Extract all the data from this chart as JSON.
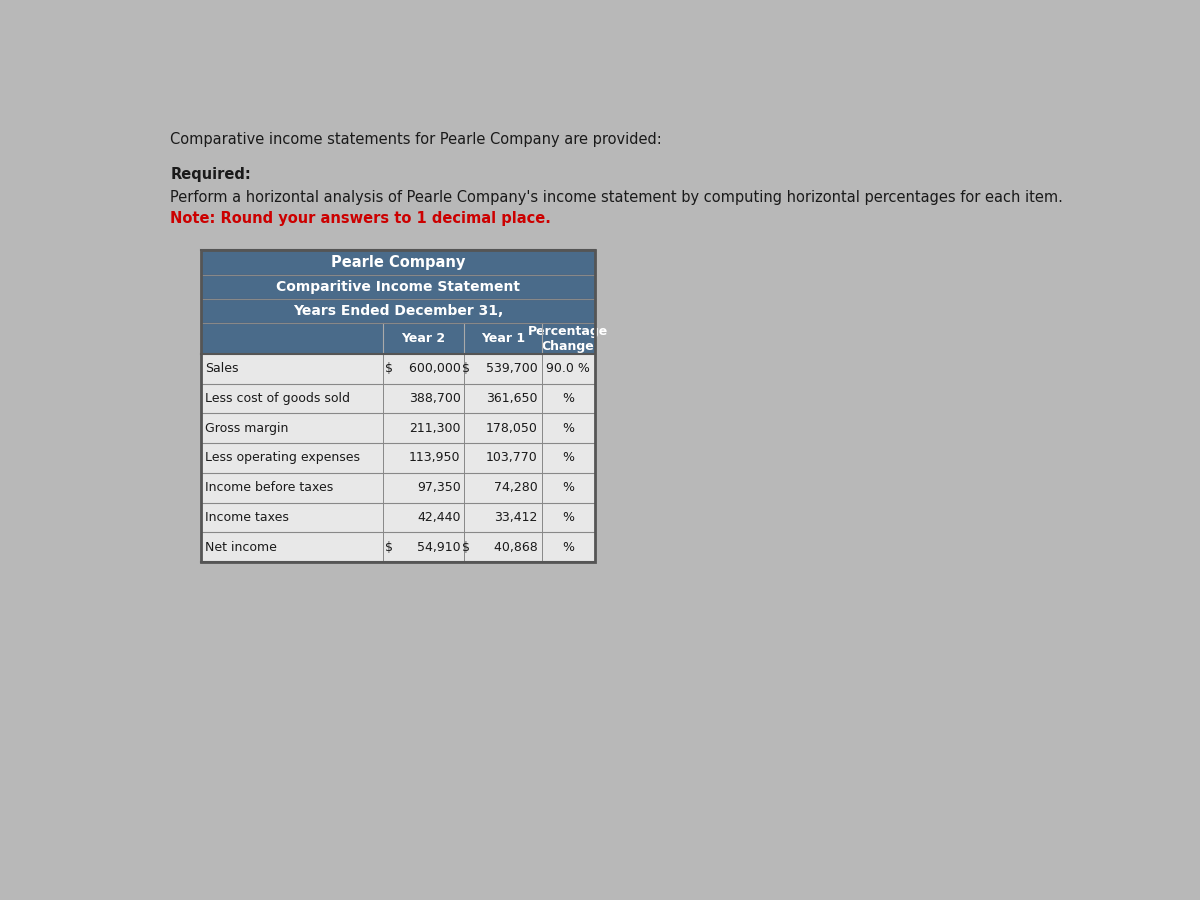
{
  "title1": "Pearle Company",
  "title2": "Comparitive Income Statement",
  "title3": "Years Ended December 31,",
  "rows": [
    {
      "label": "Sales",
      "year2": "$    600,000",
      "year1": "$    539,700",
      "pct": "90.0 %"
    },
    {
      "label": "Less cost of goods sold",
      "year2": "388,700",
      "year1": "361,650",
      "pct": "%"
    },
    {
      "label": "Gross margin",
      "year2": "211,300",
      "year1": "178,050",
      "pct": "%"
    },
    {
      "label": "Less operating expenses",
      "year2": "113,950",
      "year1": "103,770",
      "pct": "%"
    },
    {
      "label": "Income before taxes",
      "year2": "97,350",
      "year1": "74,280",
      "pct": "%"
    },
    {
      "label": "Income taxes",
      "year2": "42,440",
      "year1": "33,412",
      "pct": "%"
    },
    {
      "label": "Net income",
      "year2": "$      54,910",
      "year1": "$      40,868",
      "pct": "%"
    }
  ],
  "intro_text": "Comparative income statements for Pearle Company are provided:",
  "required_label": "Required:",
  "instruction_text": "Perform a horizontal analysis of Pearle Company's income statement by computing horizontal percentages for each item.",
  "note_text": "Note: Round your answers to 1 decimal place.",
  "header_bg": "#4a6b8a",
  "header_text_color": "#ffffff",
  "data_row_bg": "#e8e8e8",
  "border_color": "#888888",
  "outer_border": "#555555",
  "page_bg": "#b8b8b8",
  "text_color": "#1a1a1a",
  "red_color": "#cc0000"
}
